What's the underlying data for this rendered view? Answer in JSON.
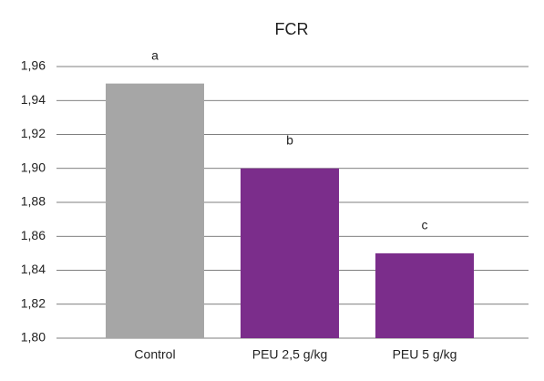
{
  "chart_data": {
    "type": "bar",
    "title": "FCR",
    "categories": [
      "Control",
      "PEU 2,5 g/kg",
      "PEU 5 g/kg"
    ],
    "values": [
      1.95,
      1.9,
      1.85
    ],
    "colors": [
      "#a6a6a6",
      "#7b2d8b",
      "#7b2d8b"
    ],
    "bar_labels": [
      "a",
      "b",
      "c"
    ],
    "ylim": [
      1.8,
      1.96
    ],
    "yticks": [
      {
        "value": 1.8,
        "label": "1,80"
      },
      {
        "value": 1.82,
        "label": "1,82"
      },
      {
        "value": 1.84,
        "label": "1,84"
      },
      {
        "value": 1.86,
        "label": "1,86"
      },
      {
        "value": 1.88,
        "label": "1,88"
      },
      {
        "value": 1.9,
        "label": "1,90"
      },
      {
        "value": 1.92,
        "label": "1,92"
      },
      {
        "value": 1.94,
        "label": "1,94"
      },
      {
        "value": 1.96,
        "label": "1,96"
      }
    ],
    "grid": true
  }
}
